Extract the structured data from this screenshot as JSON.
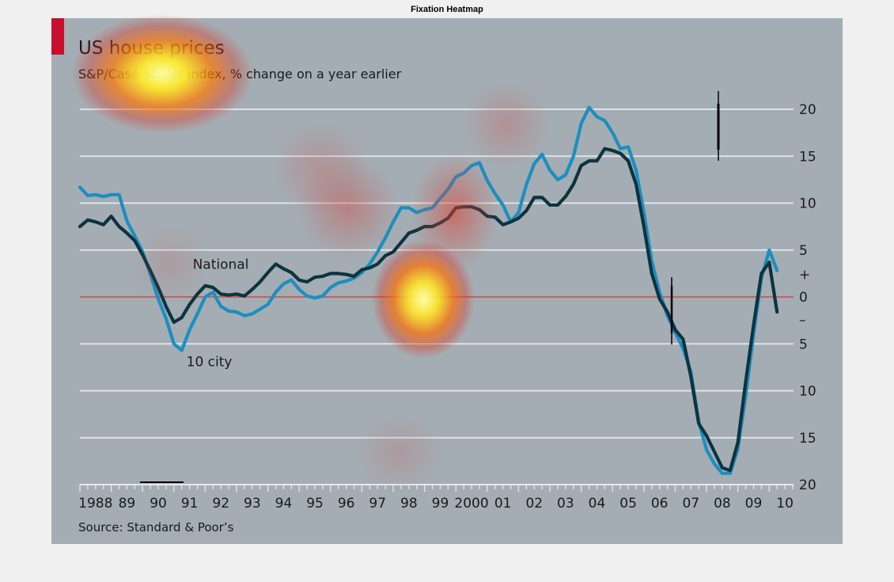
{
  "figure": {
    "title": "Fixation Heatmap"
  },
  "chart_data": {
    "type": "line",
    "title": "US house prices",
    "subtitle": "S&P/Case-Shiller index, % change on a year earlier",
    "source": "Source: Standard & Poor’s",
    "xlim": [
      1988,
      2010.75
    ],
    "ylim": [
      -20,
      22
    ],
    "y_ticks": [
      {
        "value": 20,
        "label": "20"
      },
      {
        "value": 15,
        "label": "15"
      },
      {
        "value": 10,
        "label": "10"
      },
      {
        "value": 5,
        "label": "5"
      },
      {
        "value": 2.4,
        "label": "+"
      },
      {
        "value": 0,
        "label": "0"
      },
      {
        "value": -2.4,
        "label": "–"
      },
      {
        "value": -5,
        "label": "5"
      },
      {
        "value": -10,
        "label": "10"
      },
      {
        "value": -15,
        "label": "15"
      },
      {
        "value": -20,
        "label": "20"
      }
    ],
    "x_ticks": [
      {
        "value": 1988,
        "label": "1988"
      },
      {
        "value": 1989,
        "label": "89"
      },
      {
        "value": 1990,
        "label": "90"
      },
      {
        "value": 1991,
        "label": "91"
      },
      {
        "value": 1992,
        "label": "92"
      },
      {
        "value": 1993,
        "label": "93"
      },
      {
        "value": 1994,
        "label": "94"
      },
      {
        "value": 1995,
        "label": "95"
      },
      {
        "value": 1996,
        "label": "96"
      },
      {
        "value": 1997,
        "label": "97"
      },
      {
        "value": 1998,
        "label": "98"
      },
      {
        "value": 1999,
        "label": "99"
      },
      {
        "value": 2000,
        "label": "2000"
      },
      {
        "value": 2001,
        "label": "01"
      },
      {
        "value": 2002,
        "label": "02"
      },
      {
        "value": 2003,
        "label": "03"
      },
      {
        "value": 2004,
        "label": "04"
      },
      {
        "value": 2005,
        "label": "05"
      },
      {
        "value": 2006,
        "label": "06"
      },
      {
        "value": 2007,
        "label": "07"
      },
      {
        "value": 2008,
        "label": "08"
      },
      {
        "value": 2009,
        "label": "09"
      },
      {
        "value": 2010,
        "label": "10"
      }
    ],
    "series": [
      {
        "name": "National",
        "color": "#0d3340",
        "points": [
          [
            1988.0,
            7.5
          ],
          [
            1988.25,
            8.2
          ],
          [
            1988.5,
            8.0
          ],
          [
            1988.75,
            7.7
          ],
          [
            1989.0,
            8.6
          ],
          [
            1989.25,
            7.5
          ],
          [
            1989.5,
            6.8
          ],
          [
            1989.75,
            6.0
          ],
          [
            1990.0,
            4.5
          ],
          [
            1990.25,
            2.8
          ],
          [
            1990.5,
            1.0
          ],
          [
            1990.75,
            -1.0
          ],
          [
            1991.0,
            -2.7
          ],
          [
            1991.25,
            -2.2
          ],
          [
            1991.5,
            -0.8
          ],
          [
            1991.75,
            0.3
          ],
          [
            1992.0,
            1.2
          ],
          [
            1992.25,
            1.0
          ],
          [
            1992.5,
            0.3
          ],
          [
            1992.75,
            0.2
          ],
          [
            1993.0,
            0.3
          ],
          [
            1993.25,
            0.1
          ],
          [
            1993.5,
            0.8
          ],
          [
            1993.75,
            1.6
          ],
          [
            1994.0,
            2.6
          ],
          [
            1994.25,
            3.5
          ],
          [
            1994.5,
            3.0
          ],
          [
            1994.75,
            2.6
          ],
          [
            1995.0,
            1.8
          ],
          [
            1995.25,
            1.6
          ],
          [
            1995.5,
            2.1
          ],
          [
            1995.75,
            2.2
          ],
          [
            1996.0,
            2.5
          ],
          [
            1996.25,
            2.5
          ],
          [
            1996.5,
            2.4
          ],
          [
            1996.75,
            2.2
          ],
          [
            1997.0,
            2.9
          ],
          [
            1997.25,
            3.1
          ],
          [
            1997.5,
            3.5
          ],
          [
            1997.75,
            4.4
          ],
          [
            1998.0,
            4.8
          ],
          [
            1998.25,
            5.8
          ],
          [
            1998.5,
            6.8
          ],
          [
            1998.75,
            7.1
          ],
          [
            1999.0,
            7.5
          ],
          [
            1999.25,
            7.5
          ],
          [
            1999.5,
            7.9
          ],
          [
            1999.75,
            8.4
          ],
          [
            2000.0,
            9.5
          ],
          [
            2000.25,
            9.6
          ],
          [
            2000.5,
            9.6
          ],
          [
            2000.75,
            9.3
          ],
          [
            2001.0,
            8.6
          ],
          [
            2001.25,
            8.5
          ],
          [
            2001.5,
            7.7
          ],
          [
            2001.75,
            8.0
          ],
          [
            2002.0,
            8.4
          ],
          [
            2002.25,
            9.2
          ],
          [
            2002.5,
            10.6
          ],
          [
            2002.75,
            10.6
          ],
          [
            2003.0,
            9.8
          ],
          [
            2003.25,
            9.8
          ],
          [
            2003.5,
            10.7
          ],
          [
            2003.75,
            12.0
          ],
          [
            2004.0,
            14.0
          ],
          [
            2004.25,
            14.5
          ],
          [
            2004.5,
            14.5
          ],
          [
            2004.75,
            15.8
          ],
          [
            2005.0,
            15.6
          ],
          [
            2005.25,
            15.3
          ],
          [
            2005.5,
            14.5
          ],
          [
            2005.75,
            12.0
          ],
          [
            2006.0,
            7.5
          ],
          [
            2006.25,
            2.5
          ],
          [
            2006.5,
            -0.2
          ],
          [
            2006.75,
            -1.6
          ],
          [
            2007.0,
            -3.5
          ],
          [
            2007.25,
            -4.5
          ],
          [
            2007.5,
            -8.5
          ],
          [
            2007.75,
            -13.5
          ],
          [
            2008.0,
            -14.8
          ],
          [
            2008.25,
            -16.5
          ],
          [
            2008.5,
            -18.2
          ],
          [
            2008.75,
            -18.5
          ],
          [
            2009.0,
            -15.5
          ],
          [
            2009.25,
            -9.0
          ],
          [
            2009.5,
            -3.0
          ],
          [
            2009.75,
            2.5
          ],
          [
            2010.0,
            3.7
          ],
          [
            2010.25,
            -1.6
          ]
        ]
      },
      {
        "name": "10 city",
        "color": "#1b8fc0",
        "points": [
          [
            1988.0,
            11.7
          ],
          [
            1988.25,
            10.8
          ],
          [
            1988.5,
            10.9
          ],
          [
            1988.75,
            10.7
          ],
          [
            1989.0,
            10.9
          ],
          [
            1989.25,
            10.9
          ],
          [
            1989.5,
            8.1
          ],
          [
            1989.75,
            6.5
          ],
          [
            1990.0,
            4.8
          ],
          [
            1990.25,
            2.4
          ],
          [
            1990.5,
            -0.2
          ],
          [
            1990.75,
            -2.3
          ],
          [
            1991.0,
            -5.0
          ],
          [
            1991.25,
            -5.7
          ],
          [
            1991.5,
            -3.5
          ],
          [
            1991.75,
            -1.8
          ],
          [
            1992.0,
            0.0
          ],
          [
            1992.25,
            0.5
          ],
          [
            1992.5,
            -1.0
          ],
          [
            1992.75,
            -1.5
          ],
          [
            1993.0,
            -1.6
          ],
          [
            1993.25,
            -2.0
          ],
          [
            1993.5,
            -1.8
          ],
          [
            1993.75,
            -1.3
          ],
          [
            1994.0,
            -0.8
          ],
          [
            1994.25,
            0.5
          ],
          [
            1994.5,
            1.4
          ],
          [
            1994.75,
            1.8
          ],
          [
            1995.0,
            0.8
          ],
          [
            1995.25,
            0.1
          ],
          [
            1995.5,
            -0.1
          ],
          [
            1995.75,
            0.1
          ],
          [
            1996.0,
            1.0
          ],
          [
            1996.25,
            1.5
          ],
          [
            1996.5,
            1.7
          ],
          [
            1996.75,
            2.0
          ],
          [
            1997.0,
            2.6
          ],
          [
            1997.25,
            3.5
          ],
          [
            1997.5,
            4.8
          ],
          [
            1997.75,
            6.3
          ],
          [
            1998.0,
            8.0
          ],
          [
            1998.25,
            9.5
          ],
          [
            1998.5,
            9.5
          ],
          [
            1998.75,
            9.0
          ],
          [
            1999.0,
            9.3
          ],
          [
            1999.25,
            9.5
          ],
          [
            1999.5,
            10.5
          ],
          [
            1999.75,
            11.5
          ],
          [
            2000.0,
            12.8
          ],
          [
            2000.25,
            13.2
          ],
          [
            2000.5,
            14.0
          ],
          [
            2000.75,
            14.3
          ],
          [
            2001.0,
            12.4
          ],
          [
            2001.25,
            11.0
          ],
          [
            2001.5,
            9.8
          ],
          [
            2001.75,
            8.0
          ],
          [
            2002.0,
            9.0
          ],
          [
            2002.25,
            12.0
          ],
          [
            2002.5,
            14.2
          ],
          [
            2002.75,
            15.2
          ],
          [
            2003.0,
            13.5
          ],
          [
            2003.25,
            12.5
          ],
          [
            2003.5,
            13.0
          ],
          [
            2003.75,
            15.0
          ],
          [
            2004.0,
            18.5
          ],
          [
            2004.25,
            20.2
          ],
          [
            2004.5,
            19.2
          ],
          [
            2004.75,
            18.8
          ],
          [
            2005.0,
            17.5
          ],
          [
            2005.25,
            15.8
          ],
          [
            2005.5,
            16.0
          ],
          [
            2005.75,
            13.5
          ],
          [
            2006.0,
            9.0
          ],
          [
            2006.25,
            3.8
          ],
          [
            2006.5,
            0.5
          ],
          [
            2006.75,
            -2.0
          ],
          [
            2007.0,
            -3.8
          ],
          [
            2007.25,
            -5.5
          ],
          [
            2007.5,
            -8.0
          ],
          [
            2007.75,
            -13.3
          ],
          [
            2008.0,
            -16.3
          ],
          [
            2008.25,
            -17.8
          ],
          [
            2008.5,
            -18.8
          ],
          [
            2008.75,
            -18.8
          ],
          [
            2009.0,
            -16.2
          ],
          [
            2009.25,
            -10.5
          ],
          [
            2009.5,
            -4.0
          ],
          [
            2009.75,
            2.0
          ],
          [
            2010.0,
            5.0
          ],
          [
            2010.25,
            2.8
          ]
        ]
      }
    ],
    "series_labels": [
      {
        "text": "National",
        "x": 1991.6,
        "y": 3.0
      },
      {
        "text": "10 city",
        "x": 1991.4,
        "y": -7.4
      }
    ],
    "reference_line": {
      "y": 0,
      "color": "#c0504d"
    },
    "grid": true,
    "legend": "none"
  }
}
